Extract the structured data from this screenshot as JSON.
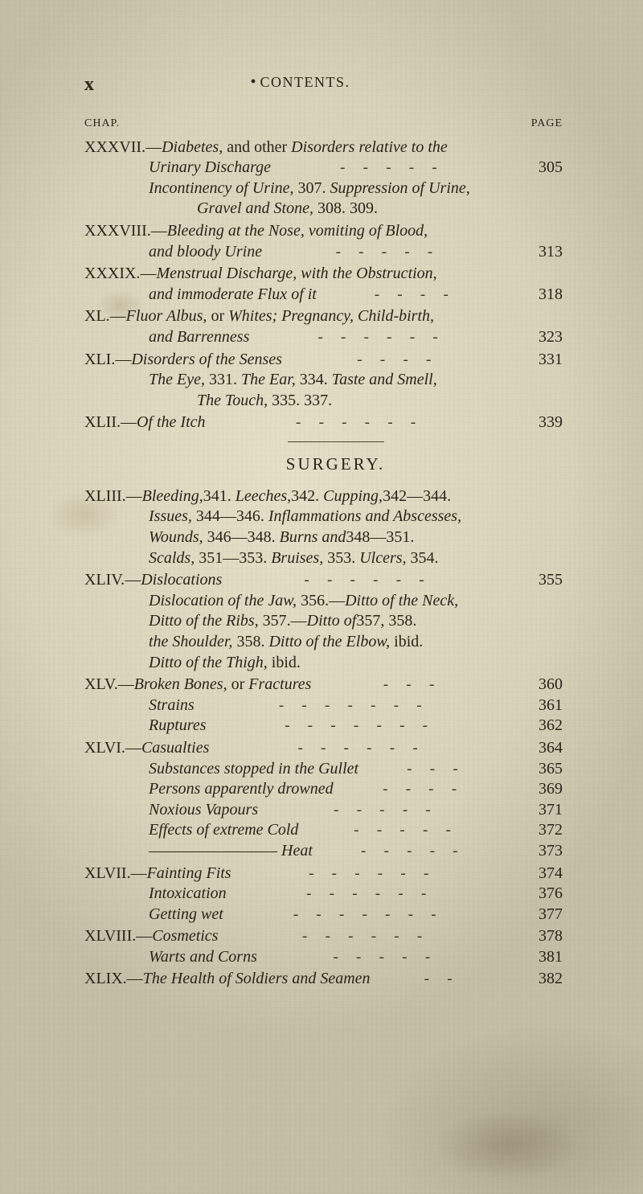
{
  "header": {
    "mark": "x",
    "bullet": "•",
    "running_title": "CONTENTS."
  },
  "colheads": {
    "left": "CHAP.",
    "right": "PAGE"
  },
  "entries": [
    {
      "roman": "XXXVII.",
      "lines": [
        {
          "pad": 0,
          "pre": "—",
          "ital": "Diabetes, ",
          "post": "and other ",
          "ital2": "Disorders relative to the"
        },
        {
          "pad": 1,
          "ital": "Urinary Discharge",
          "dashes": 5,
          "page": "305"
        },
        {
          "pad": 1,
          "ital": "Incontinency of Urine, ",
          "post": "307.   ",
          "ital2": "Suppression of Urine,"
        },
        {
          "pad": 2,
          "post": "308.   ",
          "ital": "Gravel and Stone, ",
          "post2": "309."
        }
      ]
    },
    {
      "roman": "XXXVIII.",
      "lines": [
        {
          "pad": 0,
          "pre": "—",
          "ital": "Bleeding at the Nose, vomiting of Blood,"
        },
        {
          "pad": 1,
          "ital": "and bloody Urine",
          "dashes": 5,
          "page": "313"
        }
      ]
    },
    {
      "roman": "XXXIX.",
      "lines": [
        {
          "pad": 0,
          "pre": "—",
          "ital": "Menstrual Discharge, with the Obstruction,"
        },
        {
          "pad": 1,
          "ital": "and immoderate Flux of it",
          "dashes": 4,
          "page": "318"
        }
      ]
    },
    {
      "roman": "XL.",
      "lines": [
        {
          "pad": 0,
          "pre": "—",
          "ital": "Fluor Albus, ",
          "post": "or ",
          "ital2": "Whites; Pregnancy, Child-birth,"
        },
        {
          "pad": 1,
          "ital": "and Barrenness",
          "dashes": 6,
          "page": "323"
        }
      ]
    },
    {
      "roman": "XLI.",
      "lines": [
        {
          "pad": 0,
          "pre": "—",
          "ital": "Disorders of the Senses",
          "dashes": 4,
          "page": "331"
        },
        {
          "pad": 1,
          "ital": "The Eye, ",
          "post": "331.   ",
          "ital2": "The Ear, ",
          "post2": "334.   ",
          "ital3": "Taste and Smell,"
        },
        {
          "pad": 2,
          "post": "335.   ",
          "ital": "The Touch, ",
          "post2": "337."
        }
      ]
    },
    {
      "roman": "XLII.",
      "lines": [
        {
          "pad": 0,
          "pre": "—",
          "ital": "Of the Itch",
          "dashes": 6,
          "page": "339"
        }
      ]
    }
  ],
  "section": {
    "title": "SURGERY."
  },
  "entries2": [
    {
      "roman": "XLIII.",
      "lines": [
        {
          "pad": 0,
          "pre": "—",
          "ital": "Bleeding,",
          "post": "341. ",
          "ital2": "Leeches,",
          "post2": "342. ",
          "ital3": "Cupping,",
          "post3": "342—344."
        },
        {
          "pad": 1,
          "ital": "Issues, ",
          "post": "344—346.   ",
          "ital2": "Inflammations and Abscesses,"
        },
        {
          "pad": 1,
          "post": "346—348.   ",
          "ital": "Wounds, ",
          "post2": "348—351.   ",
          "ital2": "Burns and"
        },
        {
          "pad": 1,
          "ital": "Scalds, ",
          "post": "351—353.   ",
          "ital2": "Bruises, ",
          "post2": "353.   ",
          "ital3": "Ulcers, ",
          "post3": "354."
        }
      ]
    },
    {
      "roman": "XLIV.",
      "lines": [
        {
          "pad": 0,
          "pre": "—",
          "ital": "Dislocations",
          "dashes": 6,
          "page": "355"
        },
        {
          "pad": 1,
          "ital": "Dislocation of the Jaw, ",
          "post": "356.—",
          "ital2": "Ditto of the Neck,"
        },
        {
          "pad": 1,
          "post": "357.—",
          "ital": "Ditto of the Ribs, ",
          "post2": "357, 358.   ",
          "ital2": "Ditto of"
        },
        {
          "pad": 1,
          "ital": "the Shoulder, ",
          "post": "358.   ",
          "ital2": "Ditto of the Elbow, ",
          "post2": "ibid."
        },
        {
          "pad": 1,
          "ital": "Ditto of the Thigh, ",
          "post": "ibid."
        }
      ]
    },
    {
      "roman": "XLV.",
      "lines": [
        {
          "pad": 0,
          "pre": "—",
          "ital": "Broken Bones, ",
          "post": "or ",
          "ital2": "Fractures",
          "dashes": 3,
          "page": "360"
        },
        {
          "pad": 1,
          "ital": "Strains",
          "dashes": 7,
          "page": "361"
        },
        {
          "pad": 1,
          "ital": "Ruptures",
          "dashes": 7,
          "page": "362"
        }
      ]
    },
    {
      "roman": "XLVI.",
      "lines": [
        {
          "pad": 0,
          "pre": "—",
          "ital": "Casualties",
          "dashes": 6,
          "page": "364"
        },
        {
          "pad": 1,
          "ital": "Substances stopped in the Gullet",
          "dashes": 3,
          "page": "365"
        },
        {
          "pad": 1,
          "ital": "Persons apparently drowned",
          "dashes": 4,
          "page": "369"
        },
        {
          "pad": 1,
          "ital": "Noxious Vapours",
          "dashes": 5,
          "page": "371"
        },
        {
          "pad": 1,
          "ital": "Effects of extreme Cold",
          "dashes": 5,
          "page": "372"
        },
        {
          "pad": 1,
          "pre": "———————— ",
          "ital": "Heat",
          "dashes": 5,
          "page": "373"
        }
      ]
    },
    {
      "roman": "XLVII.",
      "lines": [
        {
          "pad": 0,
          "pre": "—",
          "ital": "Fainting Fits",
          "dashes": 6,
          "page": "374"
        },
        {
          "pad": 1,
          "ital": "Intoxication",
          "dashes": 6,
          "page": "376"
        },
        {
          "pad": 1,
          "ital": "Getting wet",
          "dashes": 7,
          "page": "377"
        }
      ]
    },
    {
      "roman": "XLVIII.",
      "lines": [
        {
          "pad": 0,
          "pre": "—",
          "ital": "Cosmetics",
          "dashes": 6,
          "page": "378"
        },
        {
          "pad": 1,
          "ital": "Warts and Corns",
          "dashes": 5,
          "page": "381"
        }
      ]
    },
    {
      "roman": "XLIX.",
      "lines": [
        {
          "pad": 0,
          "pre": "—",
          "ital": "The Health of Soldiers and Seamen",
          "dashes": 2,
          "page": "382"
        }
      ]
    }
  ]
}
